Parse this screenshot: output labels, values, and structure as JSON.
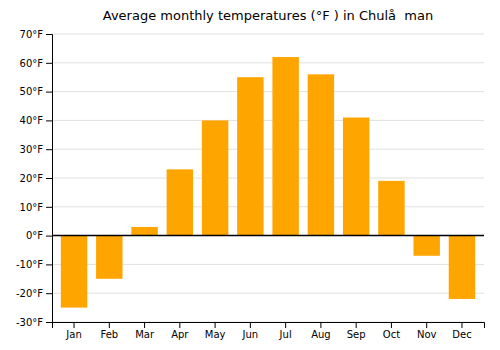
{
  "chart_data": {
    "type": "bar",
    "title": "Average monthly temperatures (°F ) in Chulå  man",
    "categories": [
      "Jan",
      "Feb",
      "Mar",
      "Apr",
      "May",
      "Jun",
      "Jul",
      "Aug",
      "Sep",
      "Oct",
      "Nov",
      "Dec"
    ],
    "values": [
      -25,
      -15,
      3,
      23,
      40,
      55,
      62,
      56,
      41,
      19,
      -7,
      -22
    ],
    "color": "#FFA500",
    "ylim": [
      -30,
      70
    ],
    "yticks": [
      {
        "value": -30,
        "label": "-30°F"
      },
      {
        "value": -20,
        "label": "-20°F"
      },
      {
        "value": -10,
        "label": "-10°F"
      },
      {
        "value": 0,
        "label": "0°F"
      },
      {
        "value": 10,
        "label": "10°F"
      },
      {
        "value": 20,
        "label": "20°F"
      },
      {
        "value": 30,
        "label": "30°F"
      },
      {
        "value": 40,
        "label": "40°F"
      },
      {
        "value": 50,
        "label": "50°F"
      },
      {
        "value": 60,
        "label": "60°F"
      },
      {
        "value": 70,
        "label": "70°F"
      }
    ],
    "grid": true
  }
}
